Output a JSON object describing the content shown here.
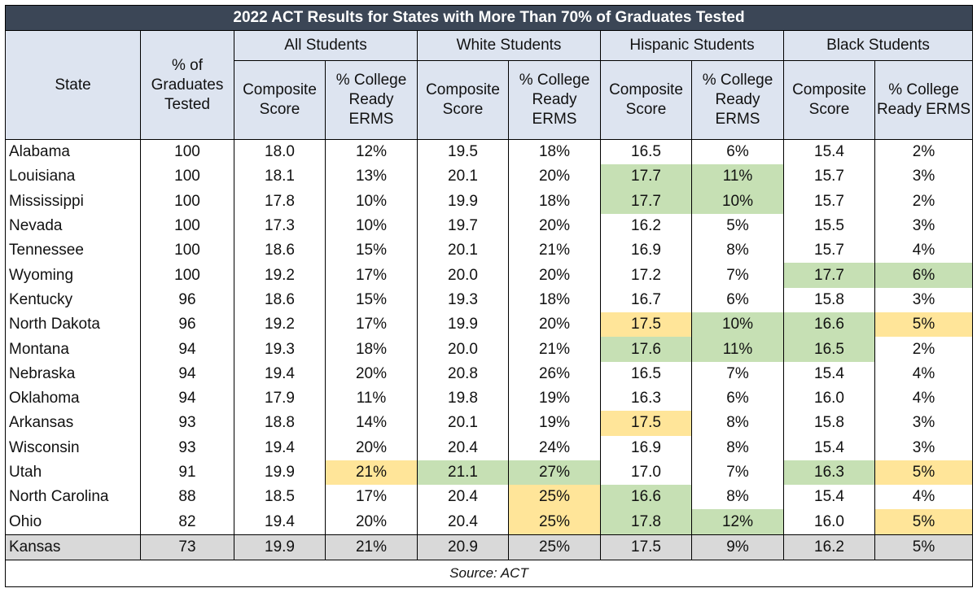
{
  "title": "2022 ACT Results for States with More Than 70% of Graduates Tested",
  "source": "Source: ACT",
  "headers": {
    "state": "State",
    "pct_tested": "% of Graduates Tested",
    "groups": [
      "All Students",
      "White Students",
      "Hispanic Students",
      "Black Students"
    ],
    "composite": "Composite Score",
    "college_ready": "% College Ready ERMS"
  },
  "colors": {
    "title_bg": "#3b4656",
    "header_bg": "#dde4f0",
    "highlight_green": "#c6e0b4",
    "highlight_yellow": "#ffe599",
    "kansas_row_bg": "#d9d9d9"
  },
  "rows": [
    {
      "state": "Alabama",
      "tested": "100",
      "cells": [
        "18.0",
        "12%",
        "19.5",
        "18%",
        "16.5",
        "6%",
        "15.4",
        "2%"
      ],
      "hl": [
        "",
        "",
        "",
        "",
        "",
        "",
        "",
        ""
      ]
    },
    {
      "state": "Louisiana",
      "tested": "100",
      "cells": [
        "18.1",
        "13%",
        "20.1",
        "20%",
        "17.7",
        "11%",
        "15.7",
        "3%"
      ],
      "hl": [
        "",
        "",
        "",
        "",
        "green",
        "green",
        "",
        ""
      ]
    },
    {
      "state": "Mississippi",
      "tested": "100",
      "cells": [
        "17.8",
        "10%",
        "19.9",
        "18%",
        "17.7",
        "10%",
        "15.7",
        "2%"
      ],
      "hl": [
        "",
        "",
        "",
        "",
        "green",
        "green",
        "",
        ""
      ]
    },
    {
      "state": "Nevada",
      "tested": "100",
      "cells": [
        "17.3",
        "10%",
        "19.7",
        "20%",
        "16.2",
        "5%",
        "15.5",
        "3%"
      ],
      "hl": [
        "",
        "",
        "",
        "",
        "",
        "",
        "",
        ""
      ]
    },
    {
      "state": "Tennessee",
      "tested": "100",
      "cells": [
        "18.6",
        "15%",
        "20.1",
        "21%",
        "16.9",
        "8%",
        "15.7",
        "4%"
      ],
      "hl": [
        "",
        "",
        "",
        "",
        "",
        "",
        "",
        ""
      ]
    },
    {
      "state": "Wyoming",
      "tested": "100",
      "cells": [
        "19.2",
        "17%",
        "20.0",
        "20%",
        "17.2",
        "7%",
        "17.7",
        "6%"
      ],
      "hl": [
        "",
        "",
        "",
        "",
        "",
        "",
        "green",
        "green"
      ]
    },
    {
      "state": "Kentucky",
      "tested": "96",
      "cells": [
        "18.6",
        "15%",
        "19.3",
        "18%",
        "16.7",
        "6%",
        "15.8",
        "3%"
      ],
      "hl": [
        "",
        "",
        "",
        "",
        "",
        "",
        "",
        ""
      ]
    },
    {
      "state": "North Dakota",
      "tested": "96",
      "cells": [
        "19.2",
        "17%",
        "19.9",
        "20%",
        "17.5",
        "10%",
        "16.6",
        "5%"
      ],
      "hl": [
        "",
        "",
        "",
        "",
        "yellow",
        "green",
        "green",
        "yellow"
      ]
    },
    {
      "state": "Montana",
      "tested": "94",
      "cells": [
        "19.3",
        "18%",
        "20.0",
        "21%",
        "17.6",
        "11%",
        "16.5",
        "2%"
      ],
      "hl": [
        "",
        "",
        "",
        "",
        "green",
        "green",
        "green",
        ""
      ]
    },
    {
      "state": "Nebraska",
      "tested": "94",
      "cells": [
        "19.4",
        "20%",
        "20.8",
        "26%",
        "16.5",
        "7%",
        "15.4",
        "4%"
      ],
      "hl": [
        "",
        "",
        "",
        "",
        "",
        "",
        "",
        ""
      ]
    },
    {
      "state": "Oklahoma",
      "tested": "94",
      "cells": [
        "17.9",
        "11%",
        "19.8",
        "19%",
        "16.3",
        "6%",
        "16.0",
        "4%"
      ],
      "hl": [
        "",
        "",
        "",
        "",
        "",
        "",
        "",
        ""
      ]
    },
    {
      "state": "Arkansas",
      "tested": "93",
      "cells": [
        "18.8",
        "14%",
        "20.1",
        "19%",
        "17.5",
        "8%",
        "15.8",
        "3%"
      ],
      "hl": [
        "",
        "",
        "",
        "",
        "yellow",
        "",
        "",
        ""
      ]
    },
    {
      "state": "Wisconsin",
      "tested": "93",
      "cells": [
        "19.4",
        "20%",
        "20.4",
        "24%",
        "16.9",
        "8%",
        "15.4",
        "3%"
      ],
      "hl": [
        "",
        "",
        "",
        "",
        "",
        "",
        "",
        ""
      ]
    },
    {
      "state": "Utah",
      "tested": "91",
      "cells": [
        "19.9",
        "21%",
        "21.1",
        "27%",
        "17.0",
        "7%",
        "16.3",
        "5%"
      ],
      "hl": [
        "",
        "yellow",
        "green",
        "green",
        "",
        "",
        "green",
        "yellow"
      ]
    },
    {
      "state": "North Carolina",
      "tested": "88",
      "cells": [
        "18.5",
        "17%",
        "20.4",
        "25%",
        "16.6",
        "8%",
        "15.4",
        "4%"
      ],
      "hl": [
        "",
        "",
        "",
        "yellow",
        "green",
        "",
        "",
        ""
      ]
    },
    {
      "state": "Ohio",
      "tested": "82",
      "cells": [
        "19.4",
        "20%",
        "20.4",
        "25%",
        "17.8",
        "12%",
        "16.0",
        "5%"
      ],
      "hl": [
        "",
        "",
        "",
        "yellow",
        "green",
        "green",
        "",
        "yellow"
      ]
    },
    {
      "state": "Kansas",
      "tested": "73",
      "cells": [
        "19.9",
        "21%",
        "20.9",
        "25%",
        "17.5",
        "9%",
        "16.2",
        "5%"
      ],
      "hl": [
        "",
        "",
        "",
        "",
        "",
        "",
        "",
        ""
      ]
    }
  ],
  "chart_data": {
    "type": "table",
    "title": "2022 ACT Results for States with More Than 70% of Graduates Tested",
    "columns": [
      "State",
      "% of Graduates Tested",
      "All Students Composite Score",
      "All Students % College Ready ERMS",
      "White Students Composite Score",
      "White Students % College Ready ERMS",
      "Hispanic Students Composite Score",
      "Hispanic Students % College Ready ERMS",
      "Black Students Composite Score",
      "Black Students % College Ready ERMS"
    ]
  }
}
